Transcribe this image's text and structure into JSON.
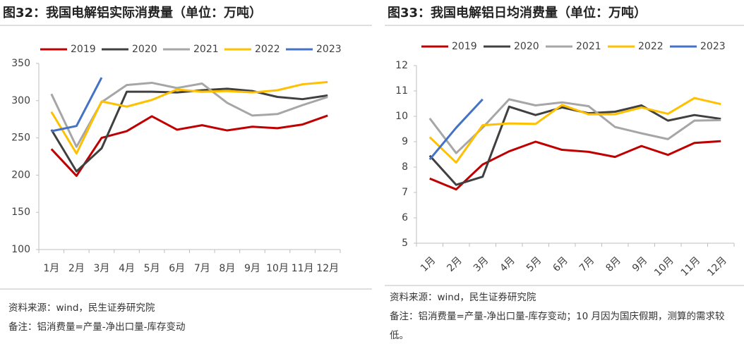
{
  "chart_data": [
    {
      "type": "line",
      "title": "图32：我国电解铝实际消费量（单位：万吨）",
      "categories": [
        "1月",
        "2月",
        "3月",
        "4月",
        "5月",
        "6月",
        "7月",
        "8月",
        "9月",
        "10月",
        "11月",
        "12月"
      ],
      "series": [
        {
          "name": "2019",
          "color": "#c00000",
          "values": [
            235,
            199,
            250,
            259,
            279,
            261,
            267,
            260,
            265,
            263,
            268,
            280
          ]
        },
        {
          "name": "2020",
          "color": "#404040",
          "values": [
            261,
            205,
            236,
            312,
            312,
            311,
            314,
            316,
            313,
            305,
            302,
            307
          ]
        },
        {
          "name": "2021",
          "color": "#a6a6a6",
          "values": [
            309,
            238,
            298,
            321,
            324,
            317,
            323,
            297,
            280,
            282,
            294,
            305
          ]
        },
        {
          "name": "2022",
          "color": "#ffc000",
          "values": [
            285,
            229,
            299,
            292,
            301,
            315,
            312,
            313,
            311,
            314,
            322,
            325
          ]
        },
        {
          "name": "2023",
          "color": "#4472c4",
          "values": [
            259,
            266,
            331,
            null,
            null,
            null,
            null,
            null,
            null,
            null,
            null,
            null
          ]
        }
      ],
      "ylim": [
        100,
        350
      ],
      "yticks": [
        100,
        150,
        200,
        250,
        300,
        350
      ],
      "grid": false,
      "source": "资料来源：wind，民生证券研究院",
      "note": "备注：铝消费量=产量-净出口量-库存变动"
    },
    {
      "type": "line",
      "title": "图33：我国电解铝日均消费量（单位：万吨）",
      "categories": [
        "1月",
        "2月",
        "3月",
        "4月",
        "5月",
        "6月",
        "7月",
        "8月",
        "9月",
        "10月",
        "11月",
        "12月"
      ],
      "series": [
        {
          "name": "2019",
          "color": "#c00000",
          "values": [
            7.55,
            7.12,
            8.1,
            8.62,
            9.0,
            8.68,
            8.6,
            8.4,
            8.83,
            8.48,
            8.95,
            9.02
          ]
        },
        {
          "name": "2020",
          "color": "#404040",
          "values": [
            8.45,
            7.3,
            7.62,
            10.38,
            10.05,
            10.35,
            10.12,
            10.18,
            10.43,
            9.83,
            10.05,
            9.9
          ]
        },
        {
          "name": "2021",
          "color": "#a6a6a6",
          "values": [
            9.92,
            8.55,
            9.55,
            10.67,
            10.43,
            10.55,
            10.4,
            9.58,
            9.33,
            9.1,
            9.83,
            9.85
          ]
        },
        {
          "name": "2022",
          "color": "#ffc000",
          "values": [
            9.18,
            8.18,
            9.65,
            9.72,
            9.7,
            10.45,
            10.08,
            10.08,
            10.35,
            10.1,
            10.72,
            10.48
          ]
        },
        {
          "name": "2023",
          "color": "#4472c4",
          "values": [
            8.3,
            9.55,
            10.67,
            null,
            null,
            null,
            null,
            null,
            null,
            null,
            null,
            null
          ]
        }
      ],
      "ylim": [
        5,
        12
      ],
      "yticks": [
        5,
        6,
        7,
        8,
        9,
        10,
        11,
        12
      ],
      "grid": false,
      "source": "资料来源：wind，民生证券研究院",
      "note": "备注：铝消费量=产量-净出口量-库存变动；10 月因为国庆假期，测算的需求较低。"
    }
  ]
}
